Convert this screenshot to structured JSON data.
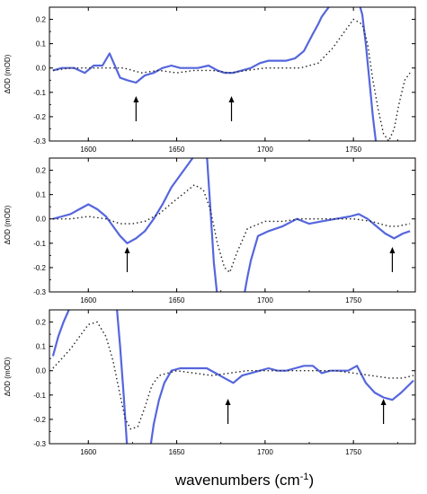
{
  "figure": {
    "xlabel_main": "wavenumbers (cm",
    "xlabel_sup": "-1",
    "xlabel_close": ")"
  },
  "colors": {
    "solid": "#5566dd",
    "dotted": "#222222",
    "axis": "#000000",
    "arrow": "#000000"
  },
  "chart_data": [
    {
      "type": "line",
      "ylabel": "ΔOD (mOD)",
      "xlim": [
        1578,
        1785
      ],
      "ylim": [
        -0.3,
        0.25
      ],
      "xticks": [
        1600,
        1650,
        1700,
        1750
      ],
      "yticks": [
        -0.3,
        -0.2,
        -0.1,
        0.0,
        0.1,
        0.2
      ],
      "ytick_labels": [
        "-0.3",
        "-0.2",
        "-0.1",
        "0.0",
        "0.1",
        "0.2"
      ],
      "xtick_labels": [
        "1600",
        "1650",
        "1700",
        "1750"
      ],
      "grid": false,
      "arrows": [
        1627,
        1681
      ],
      "series": [
        {
          "style": "solid",
          "x": [
            1580,
            1585,
            1592,
            1598,
            1603,
            1608,
            1612,
            1618,
            1622,
            1627,
            1632,
            1637,
            1642,
            1647,
            1652,
            1657,
            1662,
            1668,
            1673,
            1677,
            1682,
            1687,
            1692,
            1697,
            1702,
            1707,
            1712,
            1717,
            1722,
            1727,
            1730,
            1732,
            1734,
            1736,
            1738
          ],
          "y": [
            -0.01,
            0.0,
            0.0,
            -0.02,
            0.01,
            0.01,
            0.06,
            -0.04,
            -0.05,
            -0.06,
            -0.03,
            -0.02,
            0.0,
            0.01,
            0.0,
            0.0,
            0.0,
            0.01,
            -0.01,
            -0.02,
            -0.02,
            -0.01,
            0.0,
            0.02,
            0.03,
            0.03,
            0.03,
            0.04,
            0.07,
            0.14,
            0.18,
            0.21,
            0.23,
            0.25,
            0.27
          ]
        },
        {
          "style": "solid",
          "x": [
            1753,
            1755,
            1757,
            1759,
            1761,
            1763
          ],
          "y": [
            0.27,
            0.22,
            0.1,
            -0.05,
            -0.2,
            -0.32
          ]
        },
        {
          "style": "dotted",
          "x": [
            1580,
            1590,
            1600,
            1610,
            1620,
            1630,
            1640,
            1650,
            1660,
            1670,
            1680,
            1690,
            1700,
            1710,
            1720,
            1730,
            1738,
            1745,
            1750,
            1755,
            1758,
            1761,
            1764,
            1767,
            1770,
            1773,
            1776,
            1779,
            1782
          ],
          "y": [
            -0.01,
            0.0,
            0.0,
            0.0,
            0.0,
            -0.02,
            -0.01,
            -0.02,
            -0.01,
            -0.01,
            -0.02,
            -0.01,
            0.0,
            0.0,
            0.0,
            0.02,
            0.08,
            0.15,
            0.2,
            0.18,
            0.1,
            -0.05,
            -0.17,
            -0.27,
            -0.3,
            -0.25,
            -0.14,
            -0.05,
            -0.02
          ]
        }
      ]
    },
    {
      "type": "line",
      "ylabel": "ΔOD (mOD)",
      "xlim": [
        1578,
        1785
      ],
      "ylim": [
        -0.3,
        0.25
      ],
      "xticks": [
        1600,
        1650,
        1700,
        1750
      ],
      "yticks": [
        -0.3,
        -0.2,
        -0.1,
        0.0,
        0.1,
        0.2
      ],
      "ytick_labels": [
        "-0.3",
        "-0.2",
        "-0.1",
        "0.0",
        "0.1",
        "0.2"
      ],
      "xtick_labels": [
        "1600",
        "1650",
        "1700",
        "1750"
      ],
      "grid": false,
      "arrows": [
        1622,
        1772
      ],
      "series": [
        {
          "style": "solid",
          "x": [
            1580,
            1585,
            1590,
            1595,
            1600,
            1605,
            1610,
            1615,
            1618,
            1622,
            1627,
            1632,
            1637,
            1642,
            1647,
            1652,
            1656,
            1659,
            1662
          ],
          "y": [
            0.0,
            0.01,
            0.02,
            0.04,
            0.06,
            0.04,
            0.01,
            -0.04,
            -0.07,
            -0.1,
            -0.08,
            -0.05,
            0.0,
            0.06,
            0.13,
            0.18,
            0.22,
            0.25,
            0.27
          ]
        },
        {
          "style": "solid",
          "x": [
            1667,
            1669,
            1671,
            1673
          ],
          "y": [
            0.27,
            0.05,
            -0.18,
            -0.32
          ]
        },
        {
          "style": "solid",
          "x": [
            1688,
            1690,
            1692,
            1696,
            1702,
            1710,
            1718,
            1725,
            1732,
            1740,
            1748,
            1753,
            1758,
            1763,
            1768,
            1773,
            1778,
            1782
          ],
          "y": [
            -0.32,
            -0.24,
            -0.17,
            -0.07,
            -0.05,
            -0.03,
            0.0,
            -0.02,
            -0.01,
            0.0,
            0.01,
            0.02,
            0.0,
            -0.03,
            -0.06,
            -0.08,
            -0.06,
            -0.05
          ]
        },
        {
          "style": "dotted",
          "x": [
            1580,
            1590,
            1600,
            1610,
            1618,
            1625,
            1632,
            1640,
            1648,
            1655,
            1660,
            1665,
            1669,
            1673,
            1677,
            1680,
            1684,
            1690,
            1700,
            1710,
            1720,
            1730,
            1740,
            1750,
            1760,
            1770,
            1775,
            1782
          ],
          "y": [
            0.0,
            0.0,
            0.01,
            0.0,
            -0.02,
            -0.02,
            -0.01,
            0.02,
            0.07,
            0.11,
            0.14,
            0.12,
            0.04,
            -0.1,
            -0.2,
            -0.22,
            -0.14,
            -0.04,
            -0.01,
            -0.01,
            0.0,
            0.0,
            0.0,
            0.0,
            -0.01,
            -0.03,
            -0.03,
            -0.02
          ]
        }
      ]
    },
    {
      "type": "line",
      "ylabel": "ΔOD (mOD)",
      "xlim": [
        1578,
        1785
      ],
      "ylim": [
        -0.3,
        0.25
      ],
      "xticks": [
        1600,
        1650,
        1700,
        1750
      ],
      "yticks": [
        -0.3,
        -0.2,
        -0.1,
        0.0,
        0.1,
        0.2
      ],
      "ytick_labels": [
        "-0.3",
        "-0.2",
        "-0.1",
        "0.0",
        "0.1",
        "0.2"
      ],
      "xtick_labels": [
        "1600",
        "1650",
        "1700",
        "1750"
      ],
      "grid": false,
      "arrows": [
        1679,
        1767
      ],
      "series": [
        {
          "style": "solid",
          "x": [
            1580,
            1583,
            1586,
            1589,
            1591
          ],
          "y": [
            0.06,
            0.14,
            0.2,
            0.25,
            0.27
          ]
        },
        {
          "style": "solid",
          "x": [
            1616,
            1618,
            1620,
            1622
          ],
          "y": [
            0.27,
            0.1,
            -0.1,
            -0.32
          ]
        },
        {
          "style": "solid",
          "x": [
            1635,
            1637,
            1640,
            1643,
            1647,
            1652,
            1657,
            1662,
            1667,
            1672,
            1677,
            1682,
            1687,
            1692,
            1697,
            1702,
            1707,
            1712,
            1717,
            1722,
            1727,
            1732,
            1737,
            1742,
            1747,
            1752,
            1757,
            1762,
            1767,
            1772,
            1777,
            1784
          ],
          "y": [
            -0.32,
            -0.22,
            -0.12,
            -0.05,
            0.0,
            0.01,
            0.01,
            0.01,
            0.01,
            -0.01,
            -0.03,
            -0.05,
            -0.02,
            -0.01,
            0.0,
            0.01,
            0.0,
            0.0,
            0.01,
            0.02,
            0.02,
            -0.01,
            0.0,
            0.0,
            0.0,
            0.02,
            -0.05,
            -0.09,
            -0.11,
            -0.12,
            -0.09,
            -0.04
          ]
        },
        {
          "style": "dotted",
          "x": [
            1580,
            1585,
            1590,
            1595,
            1600,
            1605,
            1610,
            1614,
            1618,
            1621,
            1624,
            1628,
            1632,
            1636,
            1640,
            1645,
            1650,
            1660,
            1670,
            1680,
            1690,
            1700,
            1710,
            1720,
            1730,
            1740,
            1750,
            1760,
            1770,
            1778,
            1784
          ],
          "y": [
            0.01,
            0.05,
            0.09,
            0.14,
            0.19,
            0.2,
            0.14,
            0.04,
            -0.1,
            -0.2,
            -0.24,
            -0.23,
            -0.15,
            -0.06,
            -0.02,
            -0.01,
            0.0,
            -0.01,
            -0.02,
            -0.01,
            0.0,
            0.0,
            0.0,
            0.0,
            0.0,
            0.0,
            -0.01,
            -0.02,
            -0.03,
            -0.03,
            -0.02
          ]
        }
      ]
    }
  ]
}
